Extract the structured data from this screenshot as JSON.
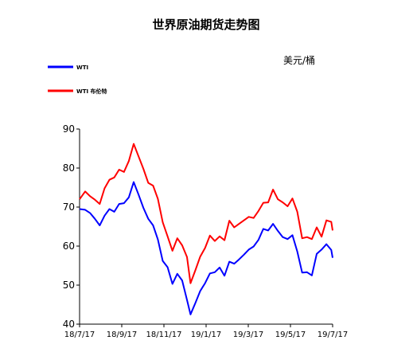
{
  "chart_data": {
    "type": "line",
    "title": "世界原油期货走势图",
    "unit_label": "美元/桶",
    "ylim": [
      40,
      90
    ],
    "y_ticks": [
      40,
      50,
      60,
      70,
      80,
      90
    ],
    "x_ticks": [
      "18/7/17",
      "18/9/17",
      "18/11/17",
      "19/1/17",
      "19/3/17",
      "19/5/17",
      "19/7/17"
    ],
    "xlim": [
      "2018-07-17",
      "2019-07-17"
    ],
    "grid": false,
    "legend_position": "top-left",
    "series": [
      {
        "name": "WTI",
        "color": "#0000ff",
        "points": [
          [
            "2018-07-17",
            69.5
          ],
          [
            "2018-07-25",
            69.3
          ],
          [
            "2018-08-01",
            68.5
          ],
          [
            "2018-08-08",
            67.0
          ],
          [
            "2018-08-15",
            65.3
          ],
          [
            "2018-08-22",
            67.8
          ],
          [
            "2018-08-29",
            69.5
          ],
          [
            "2018-09-05",
            68.8
          ],
          [
            "2018-09-12",
            70.8
          ],
          [
            "2018-09-19",
            71.0
          ],
          [
            "2018-09-26",
            72.5
          ],
          [
            "2018-10-03",
            76.4
          ],
          [
            "2018-10-10",
            73.2
          ],
          [
            "2018-10-17",
            69.8
          ],
          [
            "2018-10-24",
            67.0
          ],
          [
            "2018-10-31",
            65.3
          ],
          [
            "2018-11-07",
            61.7
          ],
          [
            "2018-11-14",
            56.2
          ],
          [
            "2018-11-21",
            54.6
          ],
          [
            "2018-11-28",
            50.3
          ],
          [
            "2018-12-05",
            52.9
          ],
          [
            "2018-12-12",
            51.2
          ],
          [
            "2018-12-19",
            46.2
          ],
          [
            "2018-12-24",
            42.5
          ],
          [
            "2018-12-31",
            45.4
          ],
          [
            "2019-01-07",
            48.5
          ],
          [
            "2019-01-14",
            50.5
          ],
          [
            "2019-01-21",
            53.0
          ],
          [
            "2019-01-28",
            53.3
          ],
          [
            "2019-02-04",
            54.5
          ],
          [
            "2019-02-11",
            52.4
          ],
          [
            "2019-02-18",
            56.0
          ],
          [
            "2019-02-25",
            55.5
          ],
          [
            "2019-03-04",
            56.6
          ],
          [
            "2019-03-11",
            57.8
          ],
          [
            "2019-03-18",
            59.1
          ],
          [
            "2019-03-25",
            59.9
          ],
          [
            "2019-04-01",
            61.6
          ],
          [
            "2019-04-08",
            64.4
          ],
          [
            "2019-04-15",
            64.0
          ],
          [
            "2019-04-22",
            65.7
          ],
          [
            "2019-04-29",
            63.9
          ],
          [
            "2019-05-06",
            62.3
          ],
          [
            "2019-05-13",
            61.8
          ],
          [
            "2019-05-20",
            62.8
          ],
          [
            "2019-05-27",
            58.6
          ],
          [
            "2019-06-03",
            53.2
          ],
          [
            "2019-06-10",
            53.3
          ],
          [
            "2019-06-17",
            52.5
          ],
          [
            "2019-06-24",
            58.0
          ],
          [
            "2019-07-01",
            59.1
          ],
          [
            "2019-07-08",
            60.5
          ],
          [
            "2019-07-15",
            59.0
          ],
          [
            "2019-07-17",
            57.0
          ]
        ]
      },
      {
        "name": "WTI 布伦特",
        "color": "#ff0000",
        "points": [
          [
            "2018-07-17",
            72.0
          ],
          [
            "2018-07-25",
            74.0
          ],
          [
            "2018-08-01",
            72.8
          ],
          [
            "2018-08-08",
            71.9
          ],
          [
            "2018-08-15",
            70.8
          ],
          [
            "2018-08-22",
            74.8
          ],
          [
            "2018-08-29",
            77.0
          ],
          [
            "2018-09-05",
            77.6
          ],
          [
            "2018-09-12",
            79.6
          ],
          [
            "2018-09-19",
            79.0
          ],
          [
            "2018-09-26",
            81.8
          ],
          [
            "2018-10-03",
            86.2
          ],
          [
            "2018-10-10",
            83.0
          ],
          [
            "2018-10-17",
            79.8
          ],
          [
            "2018-10-24",
            76.2
          ],
          [
            "2018-10-31",
            75.5
          ],
          [
            "2018-11-07",
            72.1
          ],
          [
            "2018-11-14",
            66.1
          ],
          [
            "2018-11-21",
            62.5
          ],
          [
            "2018-11-28",
            58.8
          ],
          [
            "2018-12-05",
            62.0
          ],
          [
            "2018-12-12",
            60.2
          ],
          [
            "2018-12-19",
            57.2
          ],
          [
            "2018-12-24",
            50.5
          ],
          [
            "2018-12-31",
            53.8
          ],
          [
            "2019-01-07",
            57.3
          ],
          [
            "2019-01-14",
            59.5
          ],
          [
            "2019-01-21",
            62.7
          ],
          [
            "2019-01-28",
            61.3
          ],
          [
            "2019-02-04",
            62.5
          ],
          [
            "2019-02-11",
            61.5
          ],
          [
            "2019-02-18",
            66.5
          ],
          [
            "2019-02-25",
            64.8
          ],
          [
            "2019-03-04",
            65.7
          ],
          [
            "2019-03-11",
            66.6
          ],
          [
            "2019-03-18",
            67.5
          ],
          [
            "2019-03-25",
            67.2
          ],
          [
            "2019-04-01",
            69.0
          ],
          [
            "2019-04-08",
            71.1
          ],
          [
            "2019-04-15",
            71.2
          ],
          [
            "2019-04-22",
            74.5
          ],
          [
            "2019-04-29",
            72.0
          ],
          [
            "2019-05-06",
            71.2
          ],
          [
            "2019-05-13",
            70.2
          ],
          [
            "2019-05-20",
            72.2
          ],
          [
            "2019-05-27",
            68.8
          ],
          [
            "2019-06-03",
            62.0
          ],
          [
            "2019-06-10",
            62.3
          ],
          [
            "2019-06-17",
            61.8
          ],
          [
            "2019-06-24",
            64.8
          ],
          [
            "2019-07-01",
            62.4
          ],
          [
            "2019-07-08",
            66.6
          ],
          [
            "2019-07-15",
            66.2
          ],
          [
            "2019-07-17",
            64.0
          ]
        ]
      }
    ]
  }
}
